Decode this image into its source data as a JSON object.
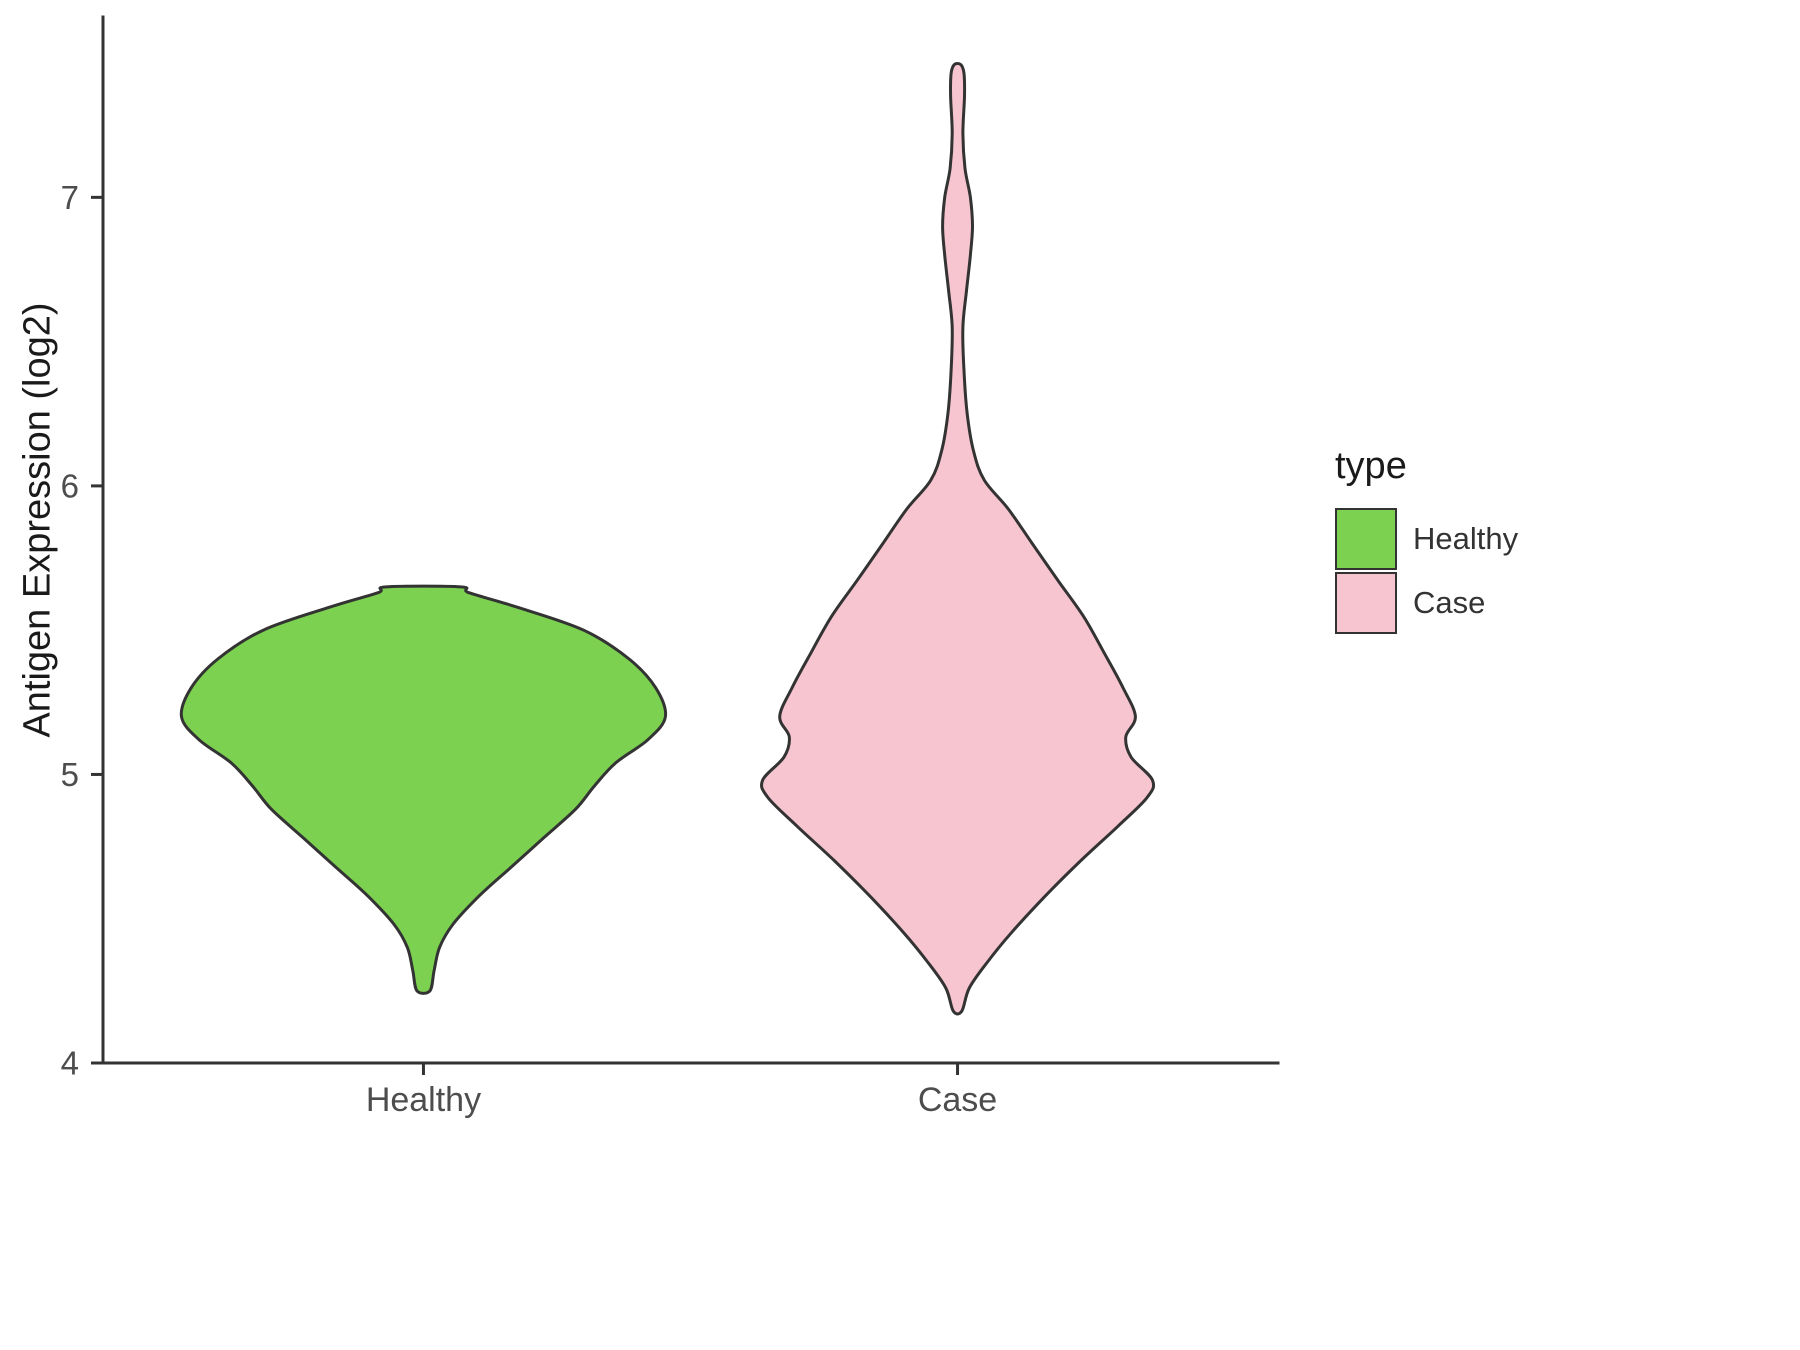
{
  "chart_data": {
    "type": "violin",
    "title": "",
    "xlabel": "",
    "ylabel": "Antigen Expression (log2)",
    "ylim": [
      4,
      7.625
    ],
    "y_ticks": [
      4,
      5,
      6,
      7
    ],
    "categories": [
      "Healthy",
      "Case"
    ],
    "grid": "off",
    "legend_position": "right",
    "legend": {
      "title": "type",
      "items": [
        {
          "label": "Healthy",
          "color": "#7CD250"
        },
        {
          "label": "Case",
          "color": "#F7C5D0"
        }
      ]
    },
    "outline_color": "#333333",
    "axis_color": "#333333",
    "tick_label_color": "#4d4d4d",
    "violins": [
      {
        "name": "Healthy",
        "color": "#7CD250",
        "center": 1,
        "profile": [
          [
            4.25,
            0.012
          ],
          [
            4.32,
            0.02
          ],
          [
            4.4,
            0.03
          ],
          [
            4.48,
            0.055
          ],
          [
            4.58,
            0.105
          ],
          [
            4.68,
            0.165
          ],
          [
            4.78,
            0.225
          ],
          [
            4.88,
            0.285
          ],
          [
            4.96,
            0.32
          ],
          [
            5.04,
            0.36
          ],
          [
            5.12,
            0.42
          ],
          [
            5.2,
            0.453
          ],
          [
            5.3,
            0.435
          ],
          [
            5.4,
            0.385
          ],
          [
            5.5,
            0.3
          ],
          [
            5.58,
            0.175
          ],
          [
            5.63,
            0.085
          ],
          [
            5.65,
            0.07
          ]
        ]
      },
      {
        "name": "Case",
        "color": "#F7C5D0",
        "center": 2,
        "profile": [
          [
            4.18,
            0.008
          ],
          [
            4.26,
            0.022
          ],
          [
            4.35,
            0.056
          ],
          [
            4.45,
            0.1
          ],
          [
            4.58,
            0.165
          ],
          [
            4.7,
            0.23
          ],
          [
            4.82,
            0.3
          ],
          [
            4.92,
            0.355
          ],
          [
            4.98,
            0.365
          ],
          [
            5.06,
            0.325
          ],
          [
            5.13,
            0.315
          ],
          [
            5.2,
            0.333
          ],
          [
            5.3,
            0.31
          ],
          [
            5.42,
            0.275
          ],
          [
            5.55,
            0.235
          ],
          [
            5.68,
            0.185
          ],
          [
            5.8,
            0.14
          ],
          [
            5.92,
            0.095
          ],
          [
            6.02,
            0.05
          ],
          [
            6.12,
            0.03
          ],
          [
            6.25,
            0.018
          ],
          [
            6.4,
            0.012
          ],
          [
            6.55,
            0.01
          ],
          [
            6.68,
            0.017
          ],
          [
            6.8,
            0.024
          ],
          [
            6.9,
            0.028
          ],
          [
            7.0,
            0.024
          ],
          [
            7.1,
            0.014
          ],
          [
            7.22,
            0.01
          ],
          [
            7.35,
            0.013
          ],
          [
            7.43,
            0.012
          ],
          [
            7.46,
            0.006
          ]
        ]
      }
    ]
  }
}
